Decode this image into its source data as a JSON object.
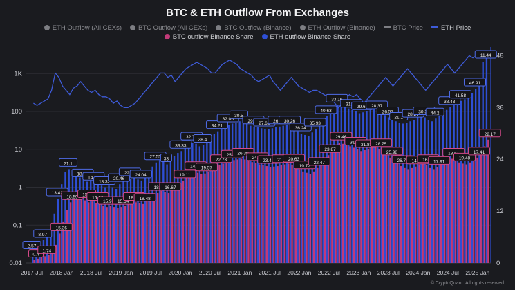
{
  "title": "BTC & ETH Outflow From Exchanges",
  "legend": {
    "row1": [
      {
        "label": "ETH Outflow (All CEXs)",
        "color": "#7d7e83",
        "struck": true,
        "kind": "dot"
      },
      {
        "label": "BTC Outflow (All CEXs)",
        "color": "#7d7e83",
        "struck": true,
        "kind": "dot"
      },
      {
        "label": "BTC Outflow (Binance)",
        "color": "#7d7e83",
        "struck": true,
        "kind": "dot"
      },
      {
        "label": "ETH Outflow (Binance)",
        "color": "#7d7e83",
        "struck": true,
        "kind": "dot"
      },
      {
        "label": "BTC Price",
        "color": "#7d7e83",
        "struck": true,
        "kind": "line"
      },
      {
        "label": "ETH Price",
        "color": "#3e5bd8",
        "struck": false,
        "kind": "line"
      }
    ],
    "row2": [
      {
        "label": "BTC outflow Binance Share",
        "color": "#c23a78",
        "struck": false,
        "kind": "dot"
      },
      {
        "label": "ETH outflow Binance Share",
        "color": "#2e4fd6",
        "struck": false,
        "kind": "dot"
      }
    ]
  },
  "footer": "© CryptoQuant. All rights reserved",
  "chart_data": {
    "type": "bar",
    "x_tick_labels": [
      "2017 Jul",
      "2018 Jan",
      "2018 Jul",
      "2019 Jan",
      "2019 Jul",
      "2020 Jan",
      "2020 Jul",
      "2021 Jan",
      "2021 Jul",
      "2022 Jan",
      "2022 Jul",
      "2023 Jan",
      "2023 Jul",
      "2024 Jan",
      "2024 Jul",
      "2025 Jan"
    ],
    "y_left_ticks": [
      "0.01",
      "0.1",
      "1",
      "10",
      "100",
      "1K"
    ],
    "y_left_scale": "log",
    "y_left_range": [
      0.01,
      5000
    ],
    "y_right_ticks": [
      "0",
      "12",
      "24",
      "36",
      "48"
    ],
    "y_right_range": [
      0,
      50
    ],
    "grid": "horizontal",
    "legend_position": "top",
    "series": [
      {
        "name": "ETH outflow Binance Share",
        "values": [
          0.02,
          0.025,
          0.03,
          0.04,
          0.06,
          0.1,
          0.2,
          0.5,
          1.2,
          2.5,
          3,
          2.8,
          2,
          1.8,
          1.6,
          1.4,
          1.5,
          1.3,
          1.2,
          1.1,
          1.0,
          1.1,
          1.0,
          0.9,
          1.2,
          1.5,
          1.6,
          1.7,
          1.8,
          1.6,
          1.5,
          2.0,
          2.5,
          3.5,
          4.5,
          5.2,
          4.8,
          4.0,
          5.5,
          6.5,
          8.0,
          9.0,
          11,
          13,
          15,
          14,
          12,
          13,
          16,
          20,
          25,
          30,
          35,
          40,
          45,
          48,
          50,
          55,
          52,
          48,
          42,
          40,
          38,
          36,
          35,
          34,
          36,
          38,
          40,
          42,
          44,
          40,
          36,
          30,
          26,
          24,
          22,
          28,
          35,
          45,
          60,
          75,
          90,
          120,
          150,
          140,
          130,
          120,
          110,
          100,
          90,
          95,
          100,
          110,
          120,
          100,
          90,
          80,
          70,
          60,
          55,
          50,
          48,
          50,
          55,
          60,
          70,
          75,
          70,
          60,
          55,
          65,
          80,
          95,
          110,
          130,
          150,
          170,
          190,
          210,
          250,
          300,
          400,
          600,
          2000,
          3500
        ]
      },
      {
        "name": "BTC outflow Binance Share",
        "values": [
          0.012,
          0.013,
          0.014,
          0.015,
          0.016,
          0.02,
          0.03,
          0.06,
          0.12,
          0.25,
          0.4,
          0.5,
          0.55,
          0.5,
          0.45,
          0.4,
          0.42,
          0.38,
          0.35,
          0.33,
          0.3,
          0.32,
          0.3,
          0.28,
          0.3,
          0.32,
          0.35,
          0.38,
          0.4,
          0.38,
          0.36,
          0.42,
          0.5,
          0.6,
          0.7,
          0.8,
          0.75,
          0.7,
          0.9,
          1.1,
          1.3,
          1.5,
          1.8,
          2.2,
          2.5,
          2.4,
          2.2,
          2.3,
          2.6,
          3.0,
          3.4,
          3.8,
          4.2,
          4.6,
          5.0,
          5.2,
          5.4,
          5.6,
          5.4,
          5.0,
          4.6,
          4.3,
          4.0,
          3.8,
          3.6,
          3.4,
          3.5,
          3.6,
          3.8,
          4.0,
          4.2,
          3.9,
          3.5,
          3.0,
          2.6,
          2.4,
          2.2,
          2.6,
          3.2,
          4.2,
          5.5,
          7.0,
          9.0,
          12,
          15,
          14,
          13,
          12,
          11,
          10,
          9,
          9.5,
          10,
          11,
          12,
          10,
          8.5,
          7,
          6,
          5,
          4.2,
          3.6,
          3.2,
          3.0,
          3.2,
          3.5,
          4.0,
          4.2,
          3.8,
          3.2,
          3.0,
          3.4,
          4.0,
          4.6,
          5.2,
          5.6,
          5.0,
          4.5,
          4.2,
          4.0,
          4.5,
          5.0,
          6.0,
          8.0,
          12,
          18
        ]
      },
      {
        "name": "ETH Price",
        "values": [
          37,
          36.5,
          37,
          37.5,
          38,
          40,
          44,
          43,
          41,
          40,
          39,
          40.5,
          41,
          42,
          41,
          40,
          39.5,
          40,
          39,
          38.5,
          38.5,
          38,
          37,
          37.5,
          36.5,
          36,
          36,
          36.5,
          37,
          38,
          39,
          40,
          41,
          42,
          43,
          44,
          44,
          43,
          43.5,
          42,
          43,
          44,
          45,
          45.5,
          46,
          46.5,
          46,
          45.5,
          45,
          44,
          44,
          45,
          46,
          46.5,
          47,
          46.5,
          46,
          45,
          44.5,
          44,
          43.5,
          42.5,
          42,
          42.5,
          43,
          43.5,
          42,
          41,
          40,
          41,
          42,
          43,
          42,
          41,
          40.5,
          40,
          39.5,
          40,
          40,
          39.5,
          39,
          38.5,
          38,
          37,
          36,
          37,
          38,
          39,
          38.5,
          39,
          38,
          37,
          38,
          39,
          40,
          41,
          42,
          43,
          42,
          41,
          42,
          43,
          44,
          45,
          44,
          43,
          42,
          41,
          40,
          41,
          42,
          43,
          44,
          45,
          46,
          45,
          44,
          45,
          46,
          47,
          48,
          47.5,
          48,
          48
        ]
      }
    ],
    "bar_labels": {
      "eth": [
        "2.57",
        "8.97",
        "13.42",
        "21.1",
        "18.93",
        "14.35",
        "13.32",
        "20.46",
        "22.74",
        "24.04",
        "27.55",
        "33",
        "33.33",
        "32.73",
        "38.4",
        "34.21",
        "32.05",
        "30.5",
        "29.52",
        "27.66",
        "26.64",
        "30.26",
        "36.24",
        "35.93",
        "40.63",
        "33.16",
        "31.59",
        "29.67",
        "28.37",
        "26.57",
        "21.1",
        "28.27",
        "30.38",
        "44.2",
        "38.43",
        "41.58",
        "46.91",
        "11.44"
      ],
      "btc": [
        "0.4",
        "1.74",
        "15.36",
        "18.59",
        "15.1",
        "16.92",
        "15.97",
        "15.54",
        "18.58",
        "18.48",
        "18.35",
        "16.67",
        "19.11",
        "14.57",
        "19.57",
        "22.73",
        "25.71",
        "26.39",
        "24.18",
        "23.47",
        "21.66",
        "20.63",
        "19.72",
        "22.47",
        "23.87",
        "29.46",
        "31.61",
        "31.81",
        "28.75",
        "25.98",
        "26.75",
        "14.65",
        "16.05",
        "17.91",
        "18.61",
        "19.48",
        "17.41",
        "22.17"
      ]
    }
  }
}
